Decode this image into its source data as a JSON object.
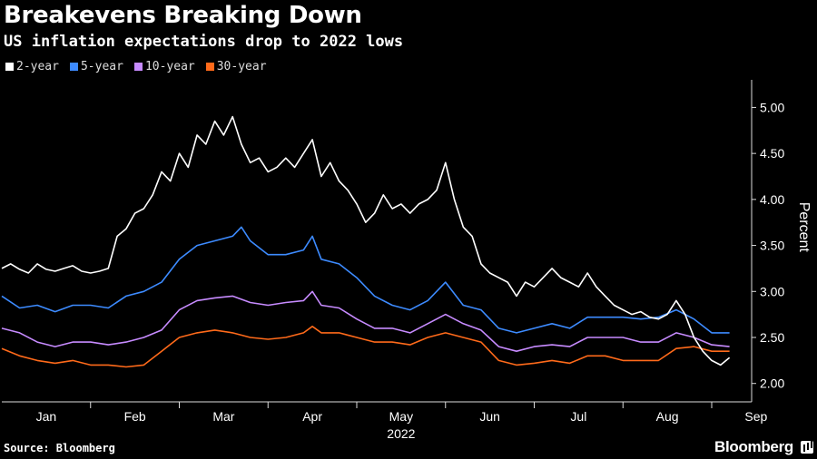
{
  "header": {
    "title": "Breakevens Breaking Down",
    "subtitle": "US inflation expectations drop to 2022 lows"
  },
  "footer": {
    "source": "Source: Bloomberg",
    "brand": "Bloomberg"
  },
  "chart_data": {
    "type": "line",
    "title": "Breakevens Breaking Down",
    "subtitle": "US inflation expectations drop to 2022 lows",
    "xlabel": "2022",
    "ylabel": "Percent",
    "ylim": [
      1.8,
      5.3
    ],
    "yticks": [
      "2.00",
      "2.50",
      "3.00",
      "3.50",
      "4.00",
      "4.50",
      "5.00"
    ],
    "xticks": [
      "Jan",
      "Feb",
      "Mar",
      "Apr",
      "May",
      "Jun",
      "Jul",
      "Aug",
      "Sep"
    ],
    "x_year_label": "2022",
    "legend_position": "top-left",
    "grid": false,
    "x_is_month_index_start_jan1": true,
    "series": [
      {
        "name": "2-year",
        "color": "#ffffff",
        "points": [
          [
            0.0,
            3.25
          ],
          [
            0.1,
            3.3
          ],
          [
            0.2,
            3.24
          ],
          [
            0.3,
            3.2
          ],
          [
            0.4,
            3.3
          ],
          [
            0.5,
            3.24
          ],
          [
            0.6,
            3.22
          ],
          [
            0.7,
            3.25
          ],
          [
            0.8,
            3.28
          ],
          [
            0.9,
            3.22
          ],
          [
            1.0,
            3.2
          ],
          [
            1.1,
            3.22
          ],
          [
            1.2,
            3.25
          ],
          [
            1.3,
            3.6
          ],
          [
            1.4,
            3.68
          ],
          [
            1.5,
            3.85
          ],
          [
            1.6,
            3.9
          ],
          [
            1.7,
            4.05
          ],
          [
            1.8,
            4.3
          ],
          [
            1.9,
            4.2
          ],
          [
            2.0,
            4.5
          ],
          [
            2.1,
            4.35
          ],
          [
            2.2,
            4.7
          ],
          [
            2.3,
            4.6
          ],
          [
            2.4,
            4.85
          ],
          [
            2.5,
            4.7
          ],
          [
            2.6,
            4.9
          ],
          [
            2.7,
            4.6
          ],
          [
            2.8,
            4.4
          ],
          [
            2.9,
            4.45
          ],
          [
            3.0,
            4.3
          ],
          [
            3.1,
            4.35
          ],
          [
            3.2,
            4.45
          ],
          [
            3.3,
            4.35
          ],
          [
            3.4,
            4.5
          ],
          [
            3.5,
            4.65
          ],
          [
            3.6,
            4.25
          ],
          [
            3.7,
            4.4
          ],
          [
            3.8,
            4.2
          ],
          [
            3.9,
            4.1
          ],
          [
            4.0,
            3.95
          ],
          [
            4.1,
            3.75
          ],
          [
            4.2,
            3.85
          ],
          [
            4.3,
            4.05
          ],
          [
            4.4,
            3.9
          ],
          [
            4.5,
            3.95
          ],
          [
            4.6,
            3.85
          ],
          [
            4.7,
            3.95
          ],
          [
            4.8,
            4.0
          ],
          [
            4.9,
            4.1
          ],
          [
            5.0,
            4.4
          ],
          [
            5.1,
            4.0
          ],
          [
            5.2,
            3.7
          ],
          [
            5.3,
            3.6
          ],
          [
            5.4,
            3.3
          ],
          [
            5.5,
            3.2
          ],
          [
            5.6,
            3.15
          ],
          [
            5.7,
            3.1
          ],
          [
            5.8,
            2.95
          ],
          [
            5.9,
            3.1
          ],
          [
            6.0,
            3.05
          ],
          [
            6.1,
            3.15
          ],
          [
            6.2,
            3.25
          ],
          [
            6.3,
            3.15
          ],
          [
            6.4,
            3.1
          ],
          [
            6.5,
            3.05
          ],
          [
            6.6,
            3.2
          ],
          [
            6.7,
            3.05
          ],
          [
            6.8,
            2.95
          ],
          [
            6.9,
            2.85
          ],
          [
            7.0,
            2.8
          ],
          [
            7.1,
            2.75
          ],
          [
            7.2,
            2.78
          ],
          [
            7.3,
            2.72
          ],
          [
            7.4,
            2.7
          ],
          [
            7.5,
            2.75
          ],
          [
            7.6,
            2.9
          ],
          [
            7.7,
            2.75
          ],
          [
            7.8,
            2.5
          ],
          [
            7.9,
            2.35
          ],
          [
            8.0,
            2.25
          ],
          [
            8.1,
            2.2
          ],
          [
            8.2,
            2.28
          ]
        ]
      },
      {
        "name": "5-year",
        "color": "#3d8bff",
        "points": [
          [
            0.0,
            2.95
          ],
          [
            0.2,
            2.82
          ],
          [
            0.4,
            2.85
          ],
          [
            0.6,
            2.78
          ],
          [
            0.8,
            2.85
          ],
          [
            1.0,
            2.85
          ],
          [
            1.2,
            2.82
          ],
          [
            1.4,
            2.95
          ],
          [
            1.6,
            3.0
          ],
          [
            1.8,
            3.1
          ],
          [
            2.0,
            3.35
          ],
          [
            2.2,
            3.5
          ],
          [
            2.4,
            3.55
          ],
          [
            2.6,
            3.6
          ],
          [
            2.7,
            3.7
          ],
          [
            2.8,
            3.55
          ],
          [
            3.0,
            3.4
          ],
          [
            3.2,
            3.4
          ],
          [
            3.4,
            3.45
          ],
          [
            3.5,
            3.6
          ],
          [
            3.6,
            3.35
          ],
          [
            3.8,
            3.3
          ],
          [
            4.0,
            3.15
          ],
          [
            4.2,
            2.95
          ],
          [
            4.4,
            2.85
          ],
          [
            4.6,
            2.8
          ],
          [
            4.8,
            2.9
          ],
          [
            5.0,
            3.1
          ],
          [
            5.2,
            2.85
          ],
          [
            5.4,
            2.8
          ],
          [
            5.6,
            2.6
          ],
          [
            5.8,
            2.55
          ],
          [
            6.0,
            2.6
          ],
          [
            6.2,
            2.65
          ],
          [
            6.4,
            2.6
          ],
          [
            6.6,
            2.72
          ],
          [
            6.8,
            2.72
          ],
          [
            7.0,
            2.72
          ],
          [
            7.2,
            2.7
          ],
          [
            7.4,
            2.72
          ],
          [
            7.6,
            2.8
          ],
          [
            7.8,
            2.7
          ],
          [
            8.0,
            2.55
          ],
          [
            8.2,
            2.55
          ]
        ]
      },
      {
        "name": "10-year",
        "color": "#c78bff",
        "points": [
          [
            0.0,
            2.6
          ],
          [
            0.2,
            2.55
          ],
          [
            0.4,
            2.45
          ],
          [
            0.6,
            2.4
          ],
          [
            0.8,
            2.45
          ],
          [
            1.0,
            2.45
          ],
          [
            1.2,
            2.42
          ],
          [
            1.4,
            2.45
          ],
          [
            1.6,
            2.5
          ],
          [
            1.8,
            2.58
          ],
          [
            2.0,
            2.8
          ],
          [
            2.2,
            2.9
          ],
          [
            2.4,
            2.93
          ],
          [
            2.6,
            2.95
          ],
          [
            2.8,
            2.88
          ],
          [
            3.0,
            2.85
          ],
          [
            3.2,
            2.88
          ],
          [
            3.4,
            2.9
          ],
          [
            3.5,
            3.0
          ],
          [
            3.6,
            2.85
          ],
          [
            3.8,
            2.82
          ],
          [
            4.0,
            2.7
          ],
          [
            4.2,
            2.6
          ],
          [
            4.4,
            2.6
          ],
          [
            4.6,
            2.55
          ],
          [
            4.8,
            2.65
          ],
          [
            5.0,
            2.75
          ],
          [
            5.2,
            2.65
          ],
          [
            5.4,
            2.58
          ],
          [
            5.6,
            2.4
          ],
          [
            5.8,
            2.35
          ],
          [
            6.0,
            2.4
          ],
          [
            6.2,
            2.42
          ],
          [
            6.4,
            2.4
          ],
          [
            6.6,
            2.5
          ],
          [
            6.8,
            2.5
          ],
          [
            7.0,
            2.5
          ],
          [
            7.2,
            2.45
          ],
          [
            7.4,
            2.45
          ],
          [
            7.6,
            2.55
          ],
          [
            7.8,
            2.5
          ],
          [
            8.0,
            2.42
          ],
          [
            8.2,
            2.4
          ]
        ]
      },
      {
        "name": "30-year",
        "color": "#ff6a1a",
        "points": [
          [
            0.0,
            2.38
          ],
          [
            0.2,
            2.3
          ],
          [
            0.4,
            2.25
          ],
          [
            0.6,
            2.22
          ],
          [
            0.8,
            2.25
          ],
          [
            1.0,
            2.2
          ],
          [
            1.2,
            2.2
          ],
          [
            1.4,
            2.18
          ],
          [
            1.6,
            2.2
          ],
          [
            1.8,
            2.35
          ],
          [
            2.0,
            2.5
          ],
          [
            2.2,
            2.55
          ],
          [
            2.4,
            2.58
          ],
          [
            2.6,
            2.55
          ],
          [
            2.8,
            2.5
          ],
          [
            3.0,
            2.48
          ],
          [
            3.2,
            2.5
          ],
          [
            3.4,
            2.55
          ],
          [
            3.5,
            2.62
          ],
          [
            3.6,
            2.55
          ],
          [
            3.8,
            2.55
          ],
          [
            4.0,
            2.5
          ],
          [
            4.2,
            2.45
          ],
          [
            4.4,
            2.45
          ],
          [
            4.6,
            2.42
          ],
          [
            4.8,
            2.5
          ],
          [
            5.0,
            2.55
          ],
          [
            5.2,
            2.5
          ],
          [
            5.4,
            2.45
          ],
          [
            5.6,
            2.25
          ],
          [
            5.8,
            2.2
          ],
          [
            6.0,
            2.22
          ],
          [
            6.2,
            2.25
          ],
          [
            6.4,
            2.22
          ],
          [
            6.6,
            2.3
          ],
          [
            6.8,
            2.3
          ],
          [
            7.0,
            2.25
          ],
          [
            7.2,
            2.25
          ],
          [
            7.4,
            2.25
          ],
          [
            7.6,
            2.38
          ],
          [
            7.8,
            2.4
          ],
          [
            8.0,
            2.35
          ],
          [
            8.2,
            2.35
          ]
        ]
      }
    ]
  }
}
